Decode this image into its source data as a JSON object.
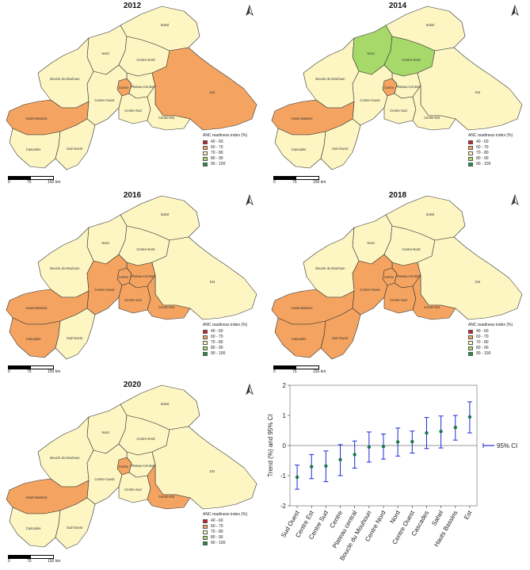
{
  "legend": {
    "title": "ANC readiness index (%)",
    "classes": [
      {
        "label": "40 - 60",
        "color": "#d7191c"
      },
      {
        "label": "60 - 70",
        "color": "#f4a460"
      },
      {
        "label": "70 - 80",
        "color": "#fdf6c3"
      },
      {
        "label": "80 - 90",
        "color": "#a6d96a"
      },
      {
        "label": "90 - 100",
        "color": "#1a9641"
      }
    ]
  },
  "scale_bar": {
    "labels": [
      "0",
      "75",
      "150 km"
    ]
  },
  "regions": [
    "Sahel",
    "Nord",
    "Centre-Nord",
    "Boucle du Mouhoun",
    "Centre",
    "Plateau-Central",
    "Est",
    "Centre-Ouest",
    "Centre-Sud",
    "Centre-Est",
    "Hauts-Bassins",
    "Cascades",
    "Sud-Ouest"
  ],
  "maps": [
    {
      "year": "2012",
      "classes": {
        "Sahel": "70 - 80",
        "Nord": "70 - 80",
        "Centre-Nord": "70 - 80",
        "Boucle du Mouhoun": "70 - 80",
        "Centre": "60 - 70",
        "Plateau-Central": "70 - 80",
        "Est": "60 - 70",
        "Centre-Ouest": "70 - 80",
        "Centre-Sud": "70 - 80",
        "Centre-Est": "70 - 80",
        "Hauts-Bassins": "60 - 70",
        "Cascades": "70 - 80",
        "Sud-Ouest": "70 - 80"
      }
    },
    {
      "year": "2014",
      "classes": {
        "Sahel": "70 - 80",
        "Nord": "80 - 90",
        "Centre-Nord": "80 - 90",
        "Boucle du Mouhoun": "70 - 80",
        "Centre": "60 - 70",
        "Plateau-Central": "70 - 80",
        "Est": "70 - 80",
        "Centre-Ouest": "70 - 80",
        "Centre-Sud": "70 - 80",
        "Centre-Est": "70 - 80",
        "Hauts-Bassins": "60 - 70",
        "Cascades": "70 - 80",
        "Sud-Ouest": "70 - 80"
      }
    },
    {
      "year": "2016",
      "classes": {
        "Sahel": "70 - 80",
        "Nord": "70 - 80",
        "Centre-Nord": "70 - 80",
        "Boucle du Mouhoun": "70 - 80",
        "Centre": "60 - 70",
        "Plateau-Central": "60 - 70",
        "Est": "70 - 80",
        "Centre-Ouest": "60 - 70",
        "Centre-Sud": "60 - 70",
        "Centre-Est": "60 - 70",
        "Hauts-Bassins": "60 - 70",
        "Cascades": "60 - 70",
        "Sud-Ouest": "70 - 80"
      }
    },
    {
      "year": "2018",
      "classes": {
        "Sahel": "70 - 80",
        "Nord": "70 - 80",
        "Centre-Nord": "70 - 80",
        "Boucle du Mouhoun": "70 - 80",
        "Centre": "60 - 70",
        "Plateau-Central": "60 - 70",
        "Est": "70 - 80",
        "Centre-Ouest": "60 - 70",
        "Centre-Sud": "60 - 70",
        "Centre-Est": "60 - 70",
        "Hauts-Bassins": "60 - 70",
        "Cascades": "60 - 70",
        "Sud-Ouest": "60 - 70"
      }
    },
    {
      "year": "2020",
      "classes": {
        "Sahel": "70 - 80",
        "Nord": "70 - 80",
        "Centre-Nord": "70 - 80",
        "Boucle du Mouhoun": "70 - 80",
        "Centre": "60 - 70",
        "Plateau-Central": "70 - 80",
        "Est": "70 - 80",
        "Centre-Ouest": "70 - 80",
        "Centre-Sud": "70 - 80",
        "Centre-Est": "60 - 70",
        "Hauts-Bassins": "60 - 70",
        "Cascades": "70 - 80",
        "Sud-Ouest": "70 - 80"
      }
    }
  ],
  "chart_data": {
    "type": "scatter",
    "ylabel": "Trend (%) and 95% CI",
    "ylim": [
      -2,
      2
    ],
    "yticks": [
      -2,
      -1,
      0,
      1,
      2
    ],
    "categories": [
      "Sud Ouest",
      "Centre Est",
      "Centre Sud",
      "Centre",
      "Plateau central",
      "Boucle du Mouhoun",
      "Centre Nord",
      "Nord",
      "Centre Ouest",
      "Cascades",
      "Sahel",
      "Hauts Bassins",
      "Est"
    ],
    "estimate": [
      -1.05,
      -0.7,
      -0.68,
      -0.47,
      -0.3,
      -0.05,
      -0.03,
      0.12,
      0.13,
      0.42,
      0.47,
      0.6,
      0.95
    ],
    "ci_low": [
      -1.45,
      -1.1,
      -1.2,
      -1.0,
      -0.75,
      -0.55,
      -0.45,
      -0.35,
      -0.25,
      -0.1,
      -0.08,
      0.18,
      0.42
    ],
    "ci_high": [
      -0.65,
      -0.3,
      -0.18,
      0.03,
      0.15,
      0.45,
      0.38,
      0.58,
      0.48,
      0.93,
      0.98,
      1.0,
      1.45
    ],
    "legend": "95% CI",
    "legend_position": "right",
    "reference_line": 0,
    "point_color": "#1a7a4a",
    "ci_color": "#1f2bd6"
  }
}
